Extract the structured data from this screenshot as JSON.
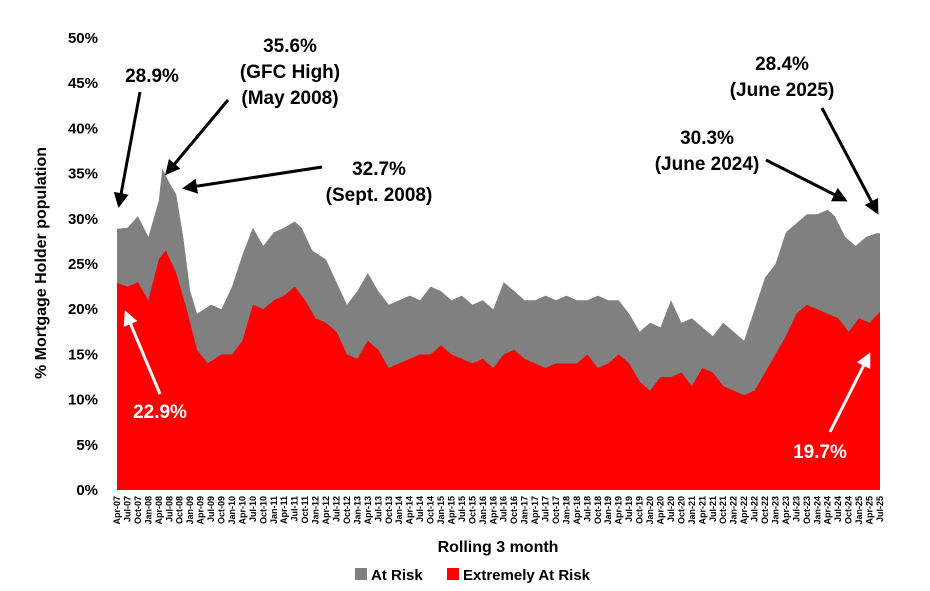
{
  "chart_data": {
    "type": "area",
    "title": "",
    "xlabel": "Rolling 3 month",
    "ylabel": "% Mortgage Holder population",
    "ylim": [
      0,
      50
    ],
    "yticks": [
      "0%",
      "5%",
      "10%",
      "15%",
      "20%",
      "25%",
      "30%",
      "35%",
      "40%",
      "45%",
      "50%"
    ],
    "ytick_values": [
      0,
      5,
      10,
      15,
      20,
      25,
      30,
      35,
      40,
      45,
      50
    ],
    "x_start": "2007-04",
    "x_end": "2025-07",
    "xtick_labels": [
      "Apr-07",
      "Jul-07",
      "Oct-07",
      "Jan-08",
      "Apr-08",
      "Jul-08",
      "Oct-08",
      "Jan-09",
      "Apr-09",
      "Jul-09",
      "Oct-09",
      "Jan-10",
      "Apr-10",
      "Jul-10",
      "Oct-10",
      "Jan-11",
      "Apr-11",
      "Jul-11",
      "Oct-11",
      "Jan-12",
      "Apr-12",
      "Jul-12",
      "Oct-12",
      "Jan-13",
      "Apr-13",
      "Jul-13",
      "Oct-13",
      "Jan-14",
      "Apr-14",
      "Jul-14",
      "Oct-14",
      "Jan-15",
      "Apr-15",
      "Jul-15",
      "Oct-15",
      "Jan-16",
      "Apr-16",
      "Jul-16",
      "Oct-16",
      "Jan-17",
      "Apr-17",
      "Jul-17",
      "Oct-17",
      "Jan-18",
      "Apr-18",
      "Jul-18",
      "Oct-18",
      "Jan-19",
      "Apr-19",
      "Jul-19",
      "Oct-19",
      "Jan-20",
      "Apr-20",
      "Jul-20",
      "Oct-20",
      "Jan-21",
      "Apr-21",
      "Jul-21",
      "Oct-21",
      "Jan-22",
      "Apr-22",
      "Jul-22",
      "Oct-22",
      "Jan-23",
      "Apr-23",
      "Jul-23",
      "Oct-23",
      "Jan-24",
      "Apr-24",
      "Jul-24",
      "Oct-24",
      "Jan-25",
      "Apr-25",
      "Jul-25"
    ],
    "grid": false,
    "legend_position": "bottom",
    "series": [
      {
        "name": "At Risk",
        "color": "#808080",
        "x": [
          "2007-04",
          "2007-07",
          "2007-10",
          "2008-01",
          "2008-04",
          "2008-05",
          "2008-07",
          "2008-09",
          "2008-11",
          "2009-01",
          "2009-03",
          "2009-07",
          "2009-10",
          "2010-01",
          "2010-04",
          "2010-07",
          "2010-10",
          "2011-01",
          "2011-04",
          "2011-07",
          "2011-09",
          "2011-12",
          "2012-04",
          "2012-07",
          "2012-10",
          "2013-01",
          "2013-04",
          "2013-07",
          "2013-10",
          "2014-01",
          "2014-04",
          "2014-07",
          "2014-10",
          "2015-01",
          "2015-04",
          "2015-07",
          "2015-10",
          "2016-01",
          "2016-04",
          "2016-07",
          "2016-10",
          "2017-01",
          "2017-04",
          "2017-07",
          "2017-10",
          "2018-01",
          "2018-04",
          "2018-07",
          "2018-10",
          "2019-01",
          "2019-04",
          "2019-07",
          "2019-10",
          "2020-01",
          "2020-04",
          "2020-07",
          "2020-10",
          "2021-01",
          "2021-04",
          "2021-07",
          "2021-10",
          "2022-01",
          "2022-04",
          "2022-07",
          "2022-10",
          "2023-01",
          "2023-04",
          "2023-07",
          "2023-10",
          "2024-01",
          "2024-04",
          "2024-06",
          "2024-09",
          "2024-12",
          "2025-03",
          "2025-06",
          "2025-07"
        ],
        "values": [
          28.9,
          29.0,
          30.3,
          28.0,
          32.0,
          35.6,
          34.0,
          32.7,
          28.0,
          22.0,
          19.5,
          20.5,
          20.0,
          22.5,
          26.0,
          29.0,
          27.0,
          28.5,
          29.0,
          29.7,
          29.0,
          26.5,
          25.5,
          23.0,
          20.5,
          22.0,
          24.0,
          22.0,
          20.5,
          21.0,
          21.5,
          21.0,
          22.5,
          22.0,
          21.0,
          21.5,
          20.5,
          21.0,
          20.0,
          23.0,
          22.0,
          21.0,
          21.0,
          21.5,
          21.0,
          21.5,
          21.0,
          21.0,
          21.5,
          21.0,
          21.0,
          19.5,
          17.5,
          18.5,
          18.0,
          21.0,
          18.5,
          19.0,
          18.0,
          17.0,
          18.5,
          17.5,
          16.5,
          20.0,
          23.5,
          25.0,
          28.5,
          29.5,
          30.5,
          30.5,
          31.0,
          30.3,
          28.0,
          27.0,
          28.0,
          28.4,
          28.4
        ]
      },
      {
        "name": "Extremely At Risk",
        "color": "#ff0000",
        "x": [
          "2007-04",
          "2007-07",
          "2007-10",
          "2008-01",
          "2008-04",
          "2008-06",
          "2008-09",
          "2008-12",
          "2009-03",
          "2009-06",
          "2009-10",
          "2010-01",
          "2010-04",
          "2010-07",
          "2010-10",
          "2011-01",
          "2011-04",
          "2011-07",
          "2011-10",
          "2012-01",
          "2012-04",
          "2012-07",
          "2012-10",
          "2013-01",
          "2013-04",
          "2013-07",
          "2013-10",
          "2014-01",
          "2014-04",
          "2014-07",
          "2014-10",
          "2015-01",
          "2015-04",
          "2015-07",
          "2015-10",
          "2016-01",
          "2016-04",
          "2016-07",
          "2016-10",
          "2017-01",
          "2017-04",
          "2017-07",
          "2017-10",
          "2018-01",
          "2018-04",
          "2018-07",
          "2018-10",
          "2019-01",
          "2019-04",
          "2019-07",
          "2019-10",
          "2020-01",
          "2020-04",
          "2020-07",
          "2020-10",
          "2021-01",
          "2021-04",
          "2021-07",
          "2021-10",
          "2022-01",
          "2022-04",
          "2022-07",
          "2022-10",
          "2023-01",
          "2023-04",
          "2023-07",
          "2023-10",
          "2024-01",
          "2024-04",
          "2024-07",
          "2024-10",
          "2025-01",
          "2025-04",
          "2025-07"
        ],
        "values": [
          22.9,
          22.5,
          23.0,
          21.0,
          25.5,
          26.5,
          24.0,
          20.0,
          15.5,
          14.0,
          15.0,
          15.0,
          16.5,
          20.5,
          20.0,
          21.0,
          21.5,
          22.5,
          21.0,
          19.0,
          18.5,
          17.5,
          15.0,
          14.5,
          16.5,
          15.5,
          13.5,
          14.0,
          14.5,
          15.0,
          15.0,
          16.0,
          15.0,
          14.5,
          14.0,
          14.5,
          13.5,
          15.0,
          15.5,
          14.5,
          14.0,
          13.5,
          14.0,
          14.0,
          14.0,
          15.0,
          13.5,
          14.0,
          15.0,
          14.0,
          12.0,
          11.0,
          12.5,
          12.5,
          13.0,
          11.5,
          13.5,
          13.0,
          11.5,
          11.0,
          10.5,
          11.0,
          13.0,
          15.0,
          17.0,
          19.5,
          20.5,
          20.0,
          19.5,
          19.0,
          17.5,
          19.0,
          18.5,
          19.7
        ]
      }
    ],
    "annotations": [
      {
        "text_lines": [
          "28.9%"
        ],
        "color": "#000000"
      },
      {
        "text_lines": [
          "35.6%",
          "(GFC High)",
          "(May 2008)"
        ],
        "color": "#000000"
      },
      {
        "text_lines": [
          "32.7%",
          "(Sept. 2008)"
        ],
        "color": "#000000"
      },
      {
        "text_lines": [
          "22.9%"
        ],
        "color": "#ffffff"
      },
      {
        "text_lines": [
          "30.3%",
          "(June 2024)"
        ],
        "color": "#000000"
      },
      {
        "text_lines": [
          "28.4%",
          "(June 2025)"
        ],
        "color": "#000000"
      },
      {
        "text_lines": [
          "19.7%"
        ],
        "color": "#ffffff"
      }
    ]
  }
}
